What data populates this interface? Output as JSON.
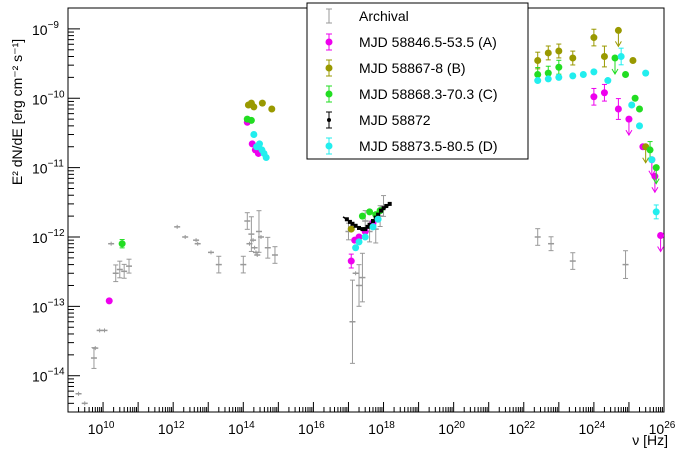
{
  "chart_data": {
    "type": "scatter",
    "title": "",
    "xlabel": {
      "base": "ν [Hz]"
    },
    "ylabel": {
      "text": "E² dN/dE [erg cm⁻² s⁻¹]"
    },
    "xscale": "log",
    "yscale": "log",
    "xlim": [
      1000000000.0,
      1e+26
    ],
    "ylim": [
      3e-15,
      2e-09
    ],
    "x_tick_labels": [
      {
        "value": 10000000000.0,
        "base": "10",
        "exp": "10"
      },
      {
        "value": 1000000000000.0,
        "base": "10",
        "exp": "12"
      },
      {
        "value": 100000000000000.0,
        "base": "10",
        "exp": "14"
      },
      {
        "value": 1e+16,
        "base": "10",
        "exp": "16"
      },
      {
        "value": 1e+18,
        "base": "10",
        "exp": "18"
      },
      {
        "value": 1e+20,
        "base": "10",
        "exp": "20"
      },
      {
        "value": 1e+22,
        "base": "10",
        "exp": "22"
      },
      {
        "value": 1e+24,
        "base": "10",
        "exp": "24"
      },
      {
        "value": 1e+26,
        "base": "10",
        "exp": "26"
      }
    ],
    "y_tick_labels": [
      {
        "value": 1e-14,
        "base": "10",
        "exp": "−14"
      },
      {
        "value": 1e-13,
        "base": "10",
        "exp": "−13"
      },
      {
        "value": 1e-12,
        "base": "10",
        "exp": "−12"
      },
      {
        "value": 1e-11,
        "base": "10",
        "exp": "−11"
      },
      {
        "value": 1e-10,
        "base": "10",
        "exp": "−10"
      },
      {
        "value": 1e-09,
        "base": "10",
        "exp": "−9"
      }
    ],
    "legend_position": "top-center",
    "series": [
      {
        "name": "Archival",
        "color": "#999999",
        "marker": "bar",
        "points": [
          {
            "x": 2000000000.0,
            "y": 5.5e-15
          },
          {
            "x": 3000000000.0,
            "y": 4e-15
          },
          {
            "x": 5500000000.0,
            "y": 1.8e-14,
            "err": 0.15
          },
          {
            "x": 6000000000.0,
            "y": 2.5e-14
          },
          {
            "x": 8000000000.0,
            "y": 4.5e-14
          },
          {
            "x": 11000000000.0,
            "y": 4.5e-14
          },
          {
            "x": 17000000000.0,
            "y": 8e-13
          },
          {
            "x": 23000000000.0,
            "y": 3e-13,
            "err": 0.12
          },
          {
            "x": 30000000000.0,
            "y": 3.4e-13,
            "err": 0.12
          },
          {
            "x": 40000000000.0,
            "y": 3.2e-13,
            "err": 0.1
          },
          {
            "x": 55000000000.0,
            "y": 3.8e-13,
            "err": 0.1
          },
          {
            "x": 1300000000000.0,
            "y": 1.4e-12
          },
          {
            "x": 2200000000000.0,
            "y": 1e-12
          },
          {
            "x": 4500000000000.0,
            "y": 9e-13
          },
          {
            "x": 5000000000000.0,
            "y": 8e-13
          },
          {
            "x": 12000000000000.0,
            "y": 6e-13
          },
          {
            "x": 20000000000000.0,
            "y": 4e-13,
            "err": 0.12
          },
          {
            "x": 100000000000000.0,
            "y": 4e-13,
            "err": 0.12
          },
          {
            "x": 130000000000000.0,
            "y": 1.7e-12,
            "err": 0.12
          },
          {
            "x": 150000000000000.0,
            "y": 8e-13
          },
          {
            "x": 170000000000000.0,
            "y": 1.1e-12,
            "err": 0.25
          },
          {
            "x": 190000000000000.0,
            "y": 9e-13
          },
          {
            "x": 210000000000000.0,
            "y": 7e-13
          },
          {
            "x": 230000000000000.0,
            "y": 6e-13
          },
          {
            "x": 250000000000000.0,
            "y": 5.5e-13
          },
          {
            "x": 280000000000000.0,
            "y": 1.2e-12,
            "err": 0.3
          },
          {
            "x": 320000000000000.0,
            "y": 1e-12
          },
          {
            "x": 500000000000000.0,
            "y": 7e-13,
            "err": 0.15
          },
          {
            "x": 800000000000000.0,
            "y": 5.5e-13,
            "err": 0.12
          },
          {
            "x": 1e+17,
            "y": 1.2e-12,
            "err": 0.12
          },
          {
            "x": 1.3e+17,
            "y": 6e-14,
            "err": 0.6
          },
          {
            "x": 1.6e+17,
            "y": 3e-13
          },
          {
            "x": 2e+17,
            "y": 2e-13,
            "err": 0.3
          },
          {
            "x": 2.5e+17,
            "y": 2.6e-13,
            "err": 0.35
          },
          {
            "x": 3e+17,
            "y": 1.7e-12,
            "err": 0.15
          },
          {
            "x": 4e+17,
            "y": 1.2e-12,
            "err": 0.15
          },
          {
            "x": 6e+17,
            "y": 1.3e-12,
            "err": 0.2
          },
          {
            "x": 8e+17,
            "y": 2e-12,
            "err": 0.15
          },
          {
            "x": 1e+18,
            "y": 2.8e-12,
            "err": 0.15
          },
          {
            "x": 2.5e+22,
            "y": 1e-12,
            "err": 0.12
          },
          {
            "x": 6e+22,
            "y": 8e-13,
            "err": 0.1
          },
          {
            "x": 2.5e+23,
            "y": 4.5e-13,
            "err": 0.12
          },
          {
            "x": 8e+24,
            "y": 4e-13,
            "err": 0.2
          }
        ]
      },
      {
        "name": "MJD 58846.5-53.5 (A)",
        "color": "#ee00ee",
        "marker": "dot",
        "points": [
          {
            "x": 15000000000.0,
            "y": 1.2e-13
          },
          {
            "x": 130000000000000.0,
            "y": 4.5e-11
          },
          {
            "x": 180000000000000.0,
            "y": 2.2e-11
          },
          {
            "x": 220000000000000.0,
            "y": 1.8e-11
          },
          {
            "x": 270000000000000.0,
            "y": 1.6e-11
          },
          {
            "x": 1.2e+17,
            "y": 4.5e-13,
            "err": 0.1
          },
          {
            "x": 1.5e+17,
            "y": 9e-13
          },
          {
            "x": 2e+17,
            "y": 1e-12
          },
          {
            "x": 3e+17,
            "y": 1.2e-12
          },
          {
            "x": 5e+17,
            "y": 1.6e-12
          },
          {
            "x": 1e+24,
            "y": 1.05e-10,
            "err": 0.12
          },
          {
            "x": 2e+24,
            "y": 1.2e-10,
            "err": 0.12
          },
          {
            "x": 5e+24,
            "y": 7e-11,
            "err": 0.15
          },
          {
            "x": 1e+25,
            "y": 5e-11,
            "upper": true
          },
          {
            "x": 2.5e+25,
            "y": 2e-11
          },
          {
            "x": 4.5e+25,
            "y": 1.3e-11,
            "upper": true
          },
          {
            "x": 5.5e+25,
            "y": 7.5e-12,
            "upper": true
          },
          {
            "x": 8e+25,
            "y": 1.05e-12,
            "upper": true
          }
        ]
      },
      {
        "name": "MJD 58867-8 (B)",
        "color": "#999900",
        "marker": "dot",
        "points": [
          {
            "x": 140000000000000.0,
            "y": 8e-11
          },
          {
            "x": 170000000000000.0,
            "y": 8.5e-11
          },
          {
            "x": 200000000000000.0,
            "y": 7.5e-11
          },
          {
            "x": 350000000000000.0,
            "y": 8.5e-11
          },
          {
            "x": 650000000000000.0,
            "y": 7e-11
          },
          {
            "x": 1.2e+17,
            "y": 1.3e-12
          },
          {
            "x": 2.5e+22,
            "y": 3.5e-10,
            "err": 0.12
          },
          {
            "x": 5e+22,
            "y": 4.5e-10,
            "err": 0.1
          },
          {
            "x": 1e+23,
            "y": 4.8e-10,
            "err": 0.1
          },
          {
            "x": 2.5e+23,
            "y": 3.8e-10,
            "err": 0.1
          },
          {
            "x": 1e+24,
            "y": 7.5e-10,
            "err": 0.12
          },
          {
            "x": 2e+24,
            "y": 4e-10,
            "err": 0.15
          },
          {
            "x": 5e+24,
            "y": 9.5e-10,
            "upper": true
          },
          {
            "x": 1.3e+25,
            "y": 3.5e-10
          },
          {
            "x": 3e+25,
            "y": 2e-11,
            "upper": true
          }
        ]
      },
      {
        "name": "MJD 58868.3-70.3 (C)",
        "color": "#22dd22",
        "marker": "dot",
        "points": [
          {
            "x": 35000000000.0,
            "y": 8e-13,
            "err": 0.06
          },
          {
            "x": 130000000000000.0,
            "y": 5e-11
          },
          {
            "x": 170000000000000.0,
            "y": 4.8e-11
          },
          {
            "x": 2.5e+17,
            "y": 2e-12
          },
          {
            "x": 4e+17,
            "y": 2.3e-12
          },
          {
            "x": 6e+17,
            "y": 2.1e-12
          },
          {
            "x": 8e+17,
            "y": 2.4e-12
          },
          {
            "x": 2.5e+22,
            "y": 2.2e-10,
            "err": 0.1
          },
          {
            "x": 5e+22,
            "y": 2.3e-10,
            "err": 0.1
          },
          {
            "x": 1e+23,
            "y": 2.8e-10,
            "err": 0.1
          },
          {
            "x": 4e+24,
            "y": 3.8e-10,
            "upper": true
          },
          {
            "x": 8e+24,
            "y": 2.2e-10
          },
          {
            "x": 1.5e+25,
            "y": 1e-10
          },
          {
            "x": 2e+25,
            "y": 7e-11
          },
          {
            "x": 4e+25,
            "y": 1.8e-11,
            "err": 0.12
          },
          {
            "x": 6e+25,
            "y": 1e-11,
            "upper": true
          }
        ]
      },
      {
        "name": "MJD 58872",
        "color": "#000000",
        "marker": "square",
        "points": [
          {
            "x": 9e+16,
            "y": 1.8e-12
          },
          {
            "x": 1.1e+17,
            "y": 1.65e-12
          },
          {
            "x": 1.3e+17,
            "y": 1.55e-12
          },
          {
            "x": 1.6e+17,
            "y": 1.45e-12
          },
          {
            "x": 2e+17,
            "y": 1.35e-12
          },
          {
            "x": 2.5e+17,
            "y": 1.3e-12
          },
          {
            "x": 3e+17,
            "y": 1.3e-12
          },
          {
            "x": 3.5e+17,
            "y": 1.4e-12
          },
          {
            "x": 4e+17,
            "y": 1.5e-12
          },
          {
            "x": 5e+17,
            "y": 1.7e-12
          },
          {
            "x": 6e+17,
            "y": 1.9e-12
          },
          {
            "x": 7e+17,
            "y": 2.1e-12
          },
          {
            "x": 8.5e+17,
            "y": 2.4e-12
          },
          {
            "x": 1e+18,
            "y": 2.6e-12
          },
          {
            "x": 1.2e+18,
            "y": 2.8e-12
          },
          {
            "x": 1.5e+18,
            "y": 3e-12
          }
        ]
      },
      {
        "name": "MJD 58873.5-80.5 (D)",
        "color": "#22eeee",
        "marker": "dot",
        "points": [
          {
            "x": 200000000000000.0,
            "y": 3e-11
          },
          {
            "x": 240000000000000.0,
            "y": 2e-11
          },
          {
            "x": 290000000000000.0,
            "y": 2.2e-11
          },
          {
            "x": 340000000000000.0,
            "y": 1.8e-11
          },
          {
            "x": 390000000000000.0,
            "y": 1.6e-11
          },
          {
            "x": 450000000000000.0,
            "y": 1.4e-11
          },
          {
            "x": 1.6e+17,
            "y": 7e-13
          },
          {
            "x": 2e+17,
            "y": 8.5e-13
          },
          {
            "x": 3e+17,
            "y": 1e-12
          },
          {
            "x": 5e+17,
            "y": 1.4e-12
          },
          {
            "x": 7e+17,
            "y": 1.8e-12
          },
          {
            "x": 2.5e+22,
            "y": 1.8e-10
          },
          {
            "x": 5e+22,
            "y": 1.9e-10
          },
          {
            "x": 1e+23,
            "y": 2e-10
          },
          {
            "x": 2.5e+23,
            "y": 2.1e-10
          },
          {
            "x": 5e+23,
            "y": 2.2e-10
          },
          {
            "x": 1e+24,
            "y": 2.4e-10
          },
          {
            "x": 2.5e+24,
            "y": 1.8e-10
          },
          {
            "x": 6e+24,
            "y": 4e-10,
            "err": 0.12
          },
          {
            "x": 1.2e+25,
            "y": 8e-11
          },
          {
            "x": 2e+25,
            "y": 4e-11
          },
          {
            "x": 3e+25,
            "y": 2.3e-10
          },
          {
            "x": 4.5e+25,
            "y": 1.3e-11
          },
          {
            "x": 6e+25,
            "y": 2.3e-12,
            "err": 0.1
          }
        ]
      }
    ],
    "curve_58872": {
      "color": "#000000",
      "x": [
        7e+16,
        9e+16,
        1.2e+17,
        1.6e+17,
        2e+17,
        2.5e+17,
        3e+17,
        4e+17,
        5e+17,
        6.5e+17,
        8e+17,
        1e+18,
        1.3e+18,
        1.6e+18
      ],
      "y": [
        1.95e-12,
        1.8e-12,
        1.6e-12,
        1.45e-12,
        1.35e-12,
        1.3e-12,
        1.3e-12,
        1.45e-12,
        1.65e-12,
        1.9e-12,
        2.2e-12,
        2.5e-12,
        2.8e-12,
        3e-12
      ]
    }
  }
}
